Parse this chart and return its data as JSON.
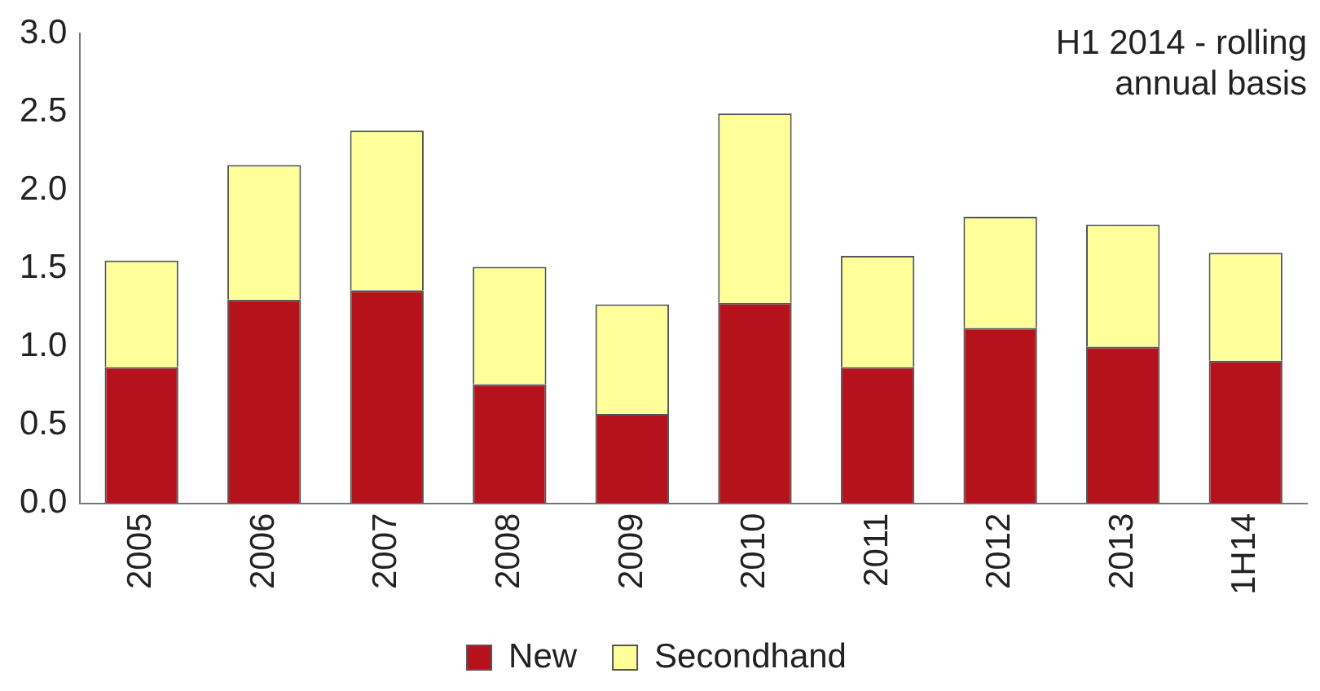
{
  "chart_data": {
    "type": "bar",
    "stacked": true,
    "categories": [
      "2005",
      "2006",
      "2007",
      "2008",
      "2009",
      "2010",
      "2011",
      "2012",
      "2013",
      "1H14"
    ],
    "series": [
      {
        "name": "New",
        "color": "#b5121b",
        "values": [
          0.87,
          1.3,
          1.36,
          0.76,
          0.57,
          1.28,
          0.87,
          1.12,
          1.0,
          0.91
        ]
      },
      {
        "name": "Secondhand",
        "color": "#ffff99",
        "values": [
          0.68,
          0.86,
          1.02,
          0.75,
          0.7,
          1.21,
          0.71,
          0.71,
          0.78,
          0.69
        ]
      }
    ],
    "ylim": [
      0,
      3
    ],
    "yticks": [
      {
        "value": 0,
        "label": "0.0"
      },
      {
        "value": 0.5,
        "label": "0.5"
      },
      {
        "value": 1,
        "label": "1.0"
      },
      {
        "value": 1.5,
        "label": "1.5"
      },
      {
        "value": 2,
        "label": "2.0"
      },
      {
        "value": 2.5,
        "label": "2.5"
      },
      {
        "value": 3,
        "label": "3.0"
      }
    ],
    "annotations": [
      "H1 2014 - rolling\nannual basis"
    ],
    "grid": false,
    "legend": "bottom"
  }
}
